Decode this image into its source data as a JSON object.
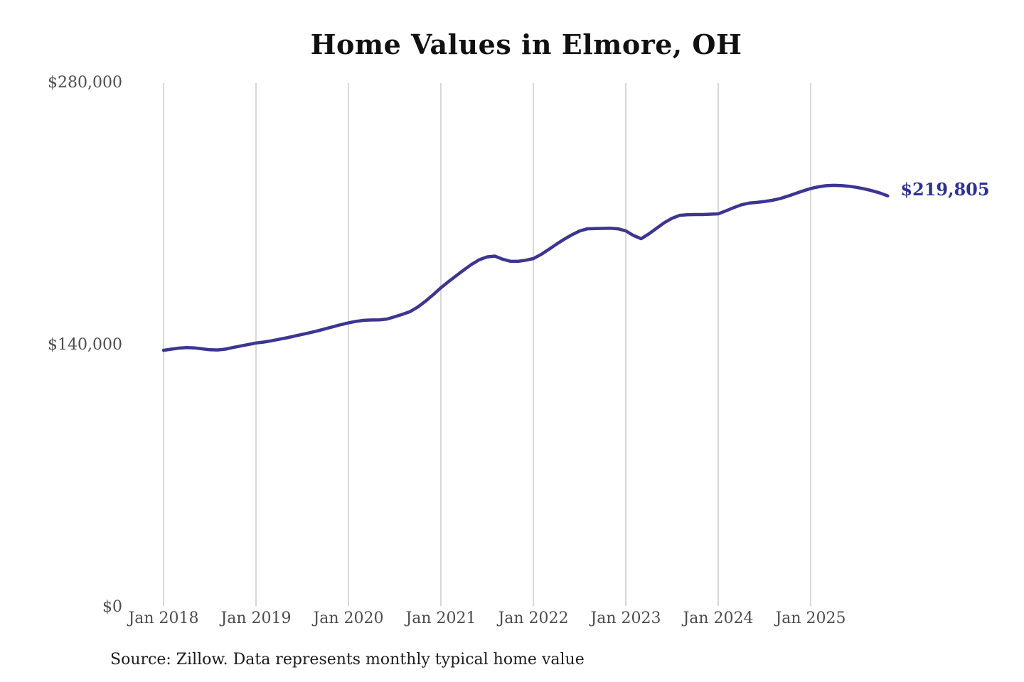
{
  "title": "Home Values in Elmore, OH",
  "source_note": "Source: Zillow. Data represents monthly typical home value",
  "colors": {
    "line": "#3c3591",
    "end_label": "#2e3192",
    "axis_text": "#4d4d4f",
    "title_text": "#111111",
    "source_text": "#1c1c1c",
    "grid": "#cccccc",
    "background": "#ffffff"
  },
  "chart_data": {
    "type": "line",
    "title": "Home Values in Elmore, OH",
    "xlabel": "",
    "ylabel": "",
    "ylim": [
      0,
      280000
    ],
    "grid": "vertical-only",
    "legend": "none",
    "series_name": "Typical home value (monthly)",
    "last_value": 219805,
    "last_value_label": "$219,805",
    "y_ticks": [
      {
        "label": "$0",
        "value": 0
      },
      {
        "label": "$140,000",
        "value": 140000
      },
      {
        "label": "$280,000",
        "value": 280000
      }
    ],
    "x_tick_labels": [
      "Jan 2018",
      "Jan 2019",
      "Jan 2020",
      "Jan 2021",
      "Jan 2022",
      "Jan 2023",
      "Jan 2024",
      "Jan 2025"
    ],
    "months": [
      "2018-01",
      "2018-02",
      "2018-03",
      "2018-04",
      "2018-05",
      "2018-06",
      "2018-07",
      "2018-08",
      "2018-09",
      "2018-10",
      "2018-11",
      "2018-12",
      "2019-01",
      "2019-02",
      "2019-03",
      "2019-04",
      "2019-05",
      "2019-06",
      "2019-07",
      "2019-08",
      "2019-09",
      "2019-10",
      "2019-11",
      "2019-12",
      "2020-01",
      "2020-02",
      "2020-03",
      "2020-04",
      "2020-05",
      "2020-06",
      "2020-07",
      "2020-08",
      "2020-09",
      "2020-10",
      "2020-11",
      "2020-12",
      "2021-01",
      "2021-02",
      "2021-03",
      "2021-04",
      "2021-05",
      "2021-06",
      "2021-07",
      "2021-08",
      "2021-09",
      "2021-10",
      "2021-11",
      "2021-12",
      "2022-01",
      "2022-02",
      "2022-03",
      "2022-04",
      "2022-05",
      "2022-06",
      "2022-07",
      "2022-08",
      "2022-09",
      "2022-10",
      "2022-11",
      "2022-12",
      "2023-01",
      "2023-02",
      "2023-03",
      "2023-04",
      "2023-05",
      "2023-06",
      "2023-07",
      "2023-08",
      "2023-09",
      "2023-10",
      "2023-11",
      "2023-12",
      "2024-01",
      "2024-02",
      "2024-03",
      "2024-04",
      "2024-05",
      "2024-06",
      "2024-07",
      "2024-08",
      "2024-09",
      "2024-10",
      "2024-11",
      "2024-12",
      "2025-01",
      "2025-02",
      "2025-03",
      "2025-04",
      "2025-05",
      "2025-06",
      "2025-07",
      "2025-08",
      "2025-09",
      "2025-10",
      "2025-11"
    ],
    "values": [
      137300,
      137900,
      138500,
      138800,
      138600,
      138100,
      137600,
      137500,
      137900,
      138800,
      139600,
      140400,
      141200,
      141700,
      142400,
      143200,
      144000,
      144900,
      145800,
      146700,
      147700,
      148800,
      149900,
      151000,
      152000,
      152800,
      153300,
      153500,
      153600,
      154000,
      155200,
      156500,
      158000,
      160400,
      163500,
      167000,
      170700,
      174000,
      177200,
      180300,
      183200,
      185700,
      187200,
      187600,
      186000,
      184900,
      184800,
      185400,
      186300,
      188500,
      191200,
      194000,
      196600,
      199000,
      201000,
      202200,
      202300,
      202400,
      202500,
      202200,
      201100,
      198600,
      196900,
      199500,
      202500,
      205500,
      207800,
      209400,
      209700,
      209800,
      209800,
      210000,
      210200,
      211800,
      213500,
      215000,
      215900,
      216300,
      216800,
      217400,
      218300,
      219600,
      221000,
      222400,
      223700,
      224600,
      225200,
      225400,
      225300,
      224900,
      224300,
      223500,
      222500,
      221300,
      219805
    ]
  }
}
